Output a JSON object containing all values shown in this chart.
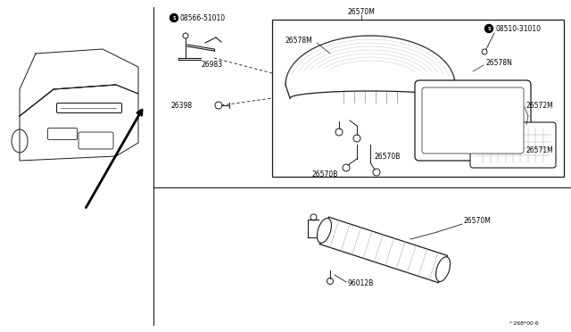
{
  "bg_color": "#ffffff",
  "line_color": "#1a1a1a",
  "gray": "#888888",
  "light_gray": "#cccccc",
  "fig_width": 6.4,
  "fig_height": 3.72,
  "dpi": 100,
  "footer_text": "^268*00 6",
  "parts": {
    "08566_51010": "08566-51010",
    "26983": "26983",
    "26398": "26398",
    "26570M": "26570M",
    "26578M": "26578M",
    "08510_31010": "08510-31010",
    "26578N": "26578N",
    "26572M": "26572M",
    "26571M": "26571M",
    "26570B": "26570B",
    "26570B2": "26570B",
    "96012B": "96012B"
  }
}
